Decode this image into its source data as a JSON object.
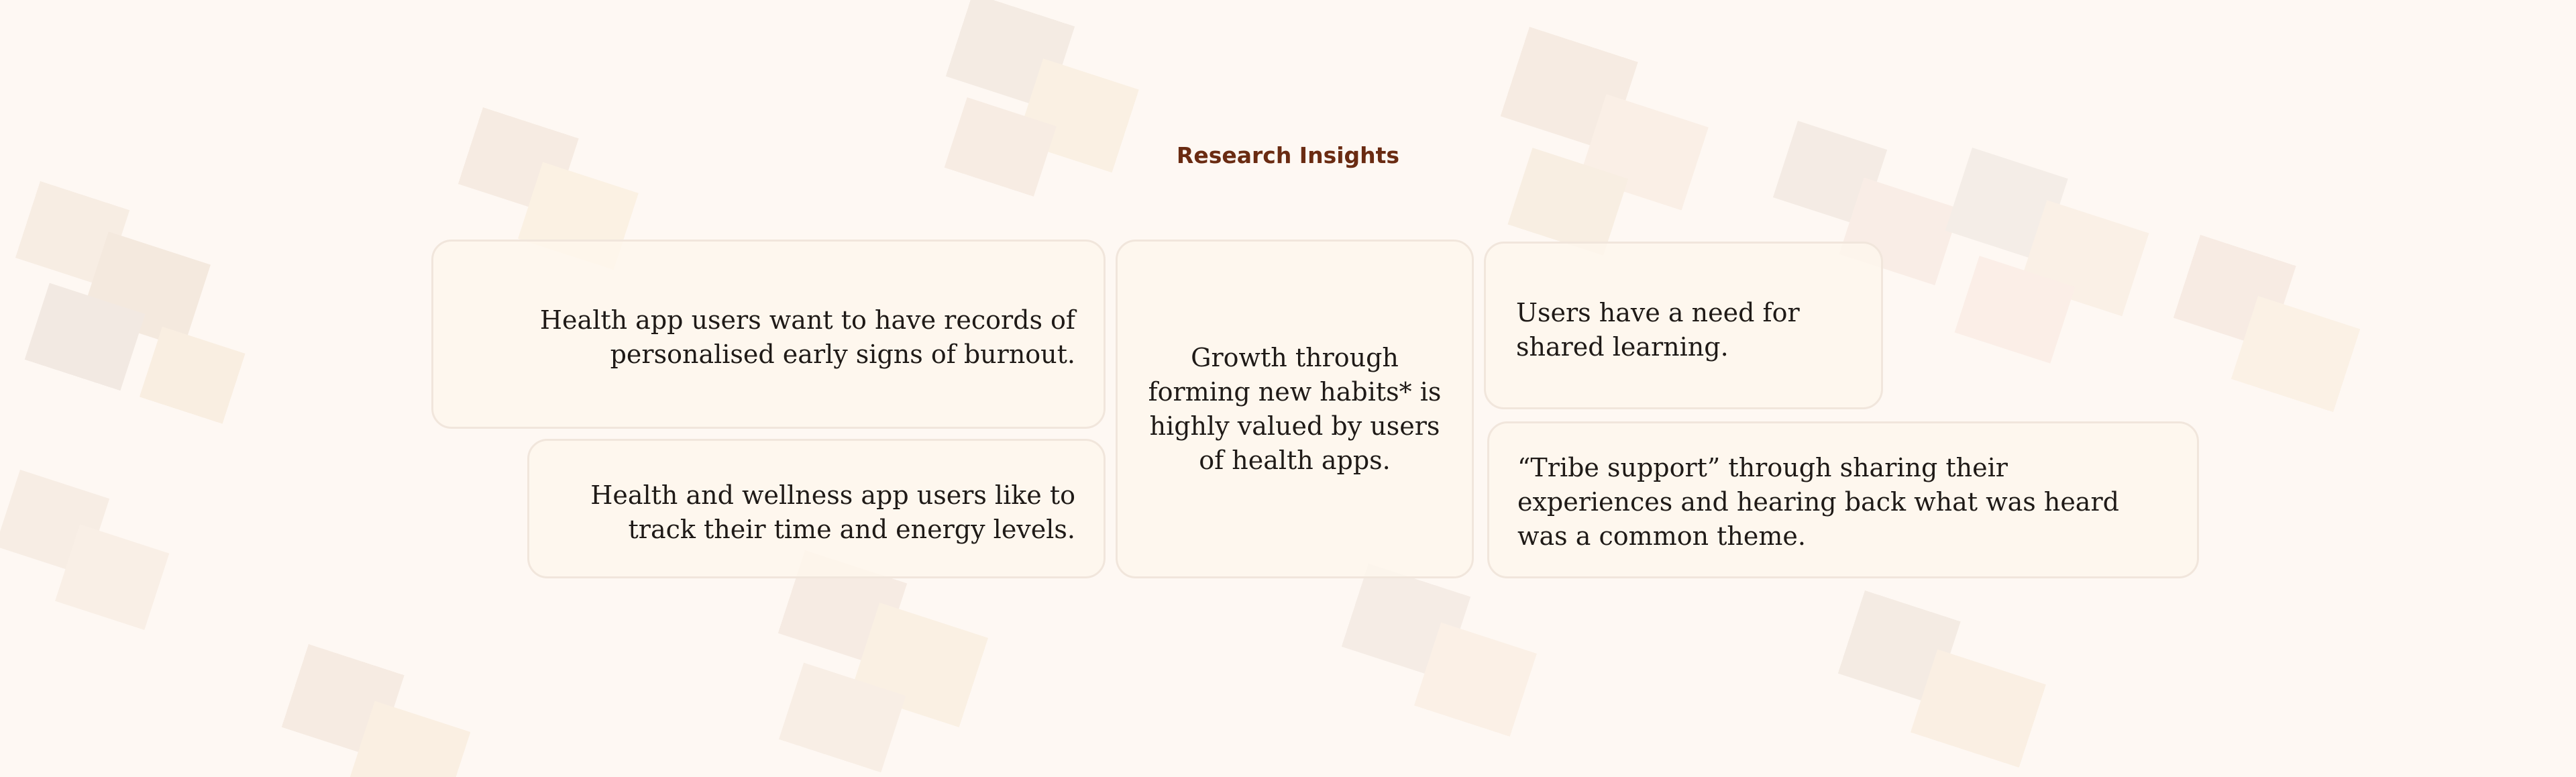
{
  "header": {
    "title": "Research Insights"
  },
  "insights": [
    {
      "id": "burnout",
      "text": "Health app users want to have records of personalised early signs of burnout."
    },
    {
      "id": "wellness",
      "text": "Health and wellness app users like to track their time and energy levels."
    },
    {
      "id": "habits",
      "text": "Growth through forming new habits* is highly valued by users of health apps."
    },
    {
      "id": "shared",
      "text": "Users have a need for shared learning."
    },
    {
      "id": "tribe",
      "text": "“Tribe support” through sharing their experiences and hearing back what was heard was a common theme."
    }
  ],
  "colors": {
    "background": "#fef8f3",
    "title": "#6a2b12",
    "card_fill": "#fef6ed",
    "card_border": "#f1e6dc",
    "card_text": "#1f1a17"
  }
}
